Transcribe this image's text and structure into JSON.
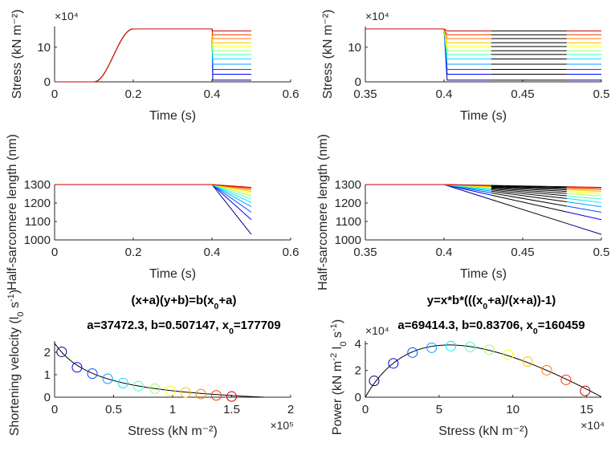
{
  "chart_data": [
    {
      "id": "p1",
      "type": "line",
      "xlabel": "Time (s)",
      "ylabel": "Stress (kN m⁻²)",
      "xlim": [
        0,
        0.6
      ],
      "ylim": [
        0,
        16
      ],
      "xticks": [
        "0",
        "0.2",
        "0.4",
        "0.6"
      ],
      "xtick_values": [
        0,
        0.2,
        0.4,
        0.6
      ],
      "yticks": [
        "0",
        "10"
      ],
      "ytick_values": [
        0,
        10
      ],
      "y_multiplier": "×10⁴",
      "rise": {
        "start": 0.1,
        "end": 0.2,
        "plateau": 15.3
      },
      "step_time": 0.4,
      "end_time": 0.5,
      "series": [
        {
          "color": "#00007f",
          "level": 0.5
        },
        {
          "color": "#0000ff",
          "level": 2.2
        },
        {
          "color": "#0050ff",
          "level": 3.6
        },
        {
          "color": "#00a0ff",
          "level": 5.1
        },
        {
          "color": "#00e6ff",
          "level": 6.6
        },
        {
          "color": "#40ffbf",
          "level": 7.9
        },
        {
          "color": "#9fff60",
          "level": 9.0
        },
        {
          "color": "#ffff00",
          "level": 10.2
        },
        {
          "color": "#ffc000",
          "level": 11.3
        },
        {
          "color": "#ff7f00",
          "level": 12.5
        },
        {
          "color": "#ff3000",
          "level": 13.6
        },
        {
          "color": "#c80000",
          "level": 14.7
        }
      ]
    },
    {
      "id": "p2",
      "type": "line",
      "xlabel": "Time (s)",
      "ylabel": "Stress (kN m⁻²)",
      "xlim": [
        0.35,
        0.5
      ],
      "ylim": [
        0,
        16
      ],
      "xticks": [
        "0.35",
        "0.4",
        "0.45",
        "0.5"
      ],
      "xtick_values": [
        0.35,
        0.4,
        0.45,
        0.5
      ],
      "yticks": [
        "0",
        "10"
      ],
      "ytick_values": [
        0,
        10
      ],
      "y_multiplier": "×10⁴",
      "plateau": 15.3,
      "step_time": 0.4,
      "end_time": 0.5,
      "black_window": [
        0.43,
        0.478
      ],
      "series_levels": [
        0.5,
        2.2,
        3.6,
        5.1,
        6.6,
        7.9,
        9.0,
        10.2,
        11.3,
        12.5,
        13.6,
        14.7
      ]
    },
    {
      "id": "p3",
      "type": "line",
      "xlabel": "Time (s)",
      "ylabel": "Half-sarcomere length (nm)",
      "xlim": [
        0,
        0.6
      ],
      "ylim": [
        1000,
        1300
      ],
      "xticks": [
        "0",
        "0.2",
        "0.4",
        "0.6"
      ],
      "xtick_values": [
        0,
        0.2,
        0.4,
        0.6
      ],
      "yticks": [
        "1000",
        "1100",
        "1200",
        "1300"
      ],
      "ytick_values": [
        1000,
        1100,
        1200,
        1300
      ],
      "start_length": 1300,
      "step_time": 0.4,
      "end_time": 0.5,
      "end_lengths": [
        1030,
        1110,
        1150,
        1180,
        1203,
        1222,
        1238,
        1252,
        1263,
        1272,
        1279,
        1285
      ]
    },
    {
      "id": "p4",
      "type": "line",
      "xlabel": "Time (s)",
      "ylabel": "Half-sarcomere length (nm)",
      "xlim": [
        0.35,
        0.5
      ],
      "ylim": [
        1000,
        1300
      ],
      "xticks": [
        "0.35",
        "0.4",
        "0.45",
        "0.5"
      ],
      "xtick_values": [
        0.35,
        0.4,
        0.45,
        0.5
      ],
      "yticks": [
        "1000",
        "1100",
        "1200",
        "1300"
      ],
      "ytick_values": [
        1000,
        1100,
        1200,
        1300
      ],
      "start_length": 1300,
      "step_time": 0.4,
      "end_time": 0.5,
      "black_window": [
        0.43,
        0.478
      ],
      "end_lengths": [
        1030,
        1110,
        1150,
        1180,
        1203,
        1222,
        1238,
        1252,
        1263,
        1272,
        1279,
        1285
      ]
    },
    {
      "id": "p5",
      "type": "scatter",
      "title_parts": [
        "(x+a)(y+b)=b(x",
        "0",
        "+a)"
      ],
      "subtitle_parts": [
        "a=37472.3, b=0.507147, x",
        "0",
        "=177709"
      ],
      "xlabel": "Stress (kN m⁻²)",
      "ylabel_parts": [
        "Shortening velocity (l",
        "0",
        " s",
        "-1",
        ")"
      ],
      "xlim": [
        0,
        2
      ],
      "ylim": [
        0,
        2.5
      ],
      "xticks": [
        "0",
        "0.5",
        "1",
        "1.5",
        "2"
      ],
      "xtick_values": [
        0,
        0.5,
        1,
        1.5,
        2
      ],
      "yticks": [
        "0",
        "1",
        "2"
      ],
      "ytick_values": [
        0,
        1,
        2
      ],
      "x_multiplier": "×10⁵",
      "fit": {
        "a": 0.374723,
        "b": 0.507147,
        "x0": 1.77709
      },
      "points": [
        {
          "x": 0.06,
          "y": 2.02,
          "color": "#00007f"
        },
        {
          "x": 0.19,
          "y": 1.33,
          "color": "#0000ff"
        },
        {
          "x": 0.32,
          "y": 1.05,
          "color": "#0050ff"
        },
        {
          "x": 0.45,
          "y": 0.82,
          "color": "#00a0ff"
        },
        {
          "x": 0.58,
          "y": 0.63,
          "color": "#00e6ff"
        },
        {
          "x": 0.71,
          "y": 0.49,
          "color": "#40ffbf"
        },
        {
          "x": 0.85,
          "y": 0.38,
          "color": "#9fff60"
        },
        {
          "x": 0.98,
          "y": 0.29,
          "color": "#ffff00"
        },
        {
          "x": 1.11,
          "y": 0.21,
          "color": "#ffc000"
        },
        {
          "x": 1.24,
          "y": 0.14,
          "color": "#ff7f00"
        },
        {
          "x": 1.37,
          "y": 0.08,
          "color": "#ff3000"
        },
        {
          "x": 1.5,
          "y": 0.03,
          "color": "#c80000"
        }
      ]
    },
    {
      "id": "p6",
      "type": "scatter",
      "title_parts": [
        "y=x*b*(((x",
        "0",
        "+a)/(x+a))-1)"
      ],
      "subtitle_parts": [
        "a=69414.3, b=0.83706, x",
        "0",
        "=160459"
      ],
      "xlabel": "Stress (kN m⁻²)",
      "ylabel_parts": [
        "Power (kN m",
        "-2",
        " l",
        "0",
        " s",
        "-1",
        ")"
      ],
      "xlim": [
        0,
        16
      ],
      "ylim": [
        0,
        4.2
      ],
      "xticks": [
        "0",
        "5",
        "10",
        "15"
      ],
      "xtick_values": [
        0,
        5,
        10,
        15
      ],
      "yticks": [
        "0",
        "2",
        "4"
      ],
      "ytick_values": [
        0,
        2,
        4
      ],
      "x_multiplier": "×10⁴",
      "y_multiplier": "×10⁴",
      "fit": {
        "a": 6.94143,
        "b": 0.83706,
        "x0": 16.0459
      },
      "points": [
        {
          "x": 0.6,
          "y": 1.22,
          "color": "#00007f"
        },
        {
          "x": 1.9,
          "y": 2.53,
          "color": "#0000ff"
        },
        {
          "x": 3.2,
          "y": 3.34,
          "color": "#0050ff"
        },
        {
          "x": 4.5,
          "y": 3.7,
          "color": "#00a0ff"
        },
        {
          "x": 5.8,
          "y": 3.82,
          "color": "#00e6ff"
        },
        {
          "x": 7.1,
          "y": 3.76,
          "color": "#40ffbf"
        },
        {
          "x": 8.4,
          "y": 3.55,
          "color": "#9fff60"
        },
        {
          "x": 9.7,
          "y": 3.18,
          "color": "#ffff00"
        },
        {
          "x": 11.0,
          "y": 2.66,
          "color": "#ffc000"
        },
        {
          "x": 12.3,
          "y": 2.02,
          "color": "#ff7f00"
        },
        {
          "x": 13.6,
          "y": 1.3,
          "color": "#ff3000"
        },
        {
          "x": 14.9,
          "y": 0.47,
          "color": "#c80000"
        }
      ]
    }
  ]
}
